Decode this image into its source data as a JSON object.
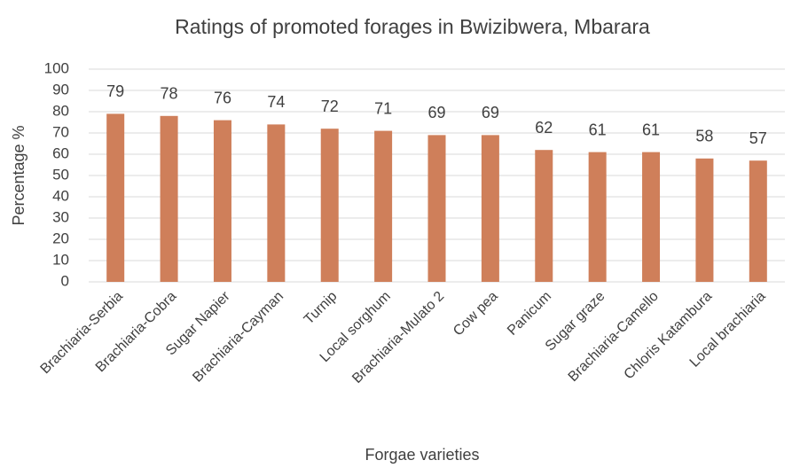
{
  "chart_data": {
    "type": "bar",
    "title": "Ratings of promoted forages in Bwizibwera, Mbarara",
    "x_label": "Forgae varieties",
    "y_label": "Percentage %",
    "categories": [
      "Brachiaria-Serbia",
      "Brachiaria-Cobra",
      "Sugar Napier",
      "Brachiaria-Cayman",
      "Turnip",
      "Local sorghum",
      "Brachiaria-Mulato 2",
      "Cow pea",
      "Panicum",
      "Sugar graze",
      "Brachiaria-Camello",
      "Chloris Katambura",
      "Local brachiaria"
    ],
    "values": [
      79,
      78,
      76,
      74,
      72,
      71,
      69,
      69,
      62,
      61,
      61,
      58,
      57
    ],
    "color": "#cf7f5a",
    "ylim": [
      0,
      100
    ],
    "yticks": [
      0,
      10,
      20,
      30,
      40,
      50,
      60,
      70,
      80,
      90,
      100
    ],
    "grid": true
  }
}
